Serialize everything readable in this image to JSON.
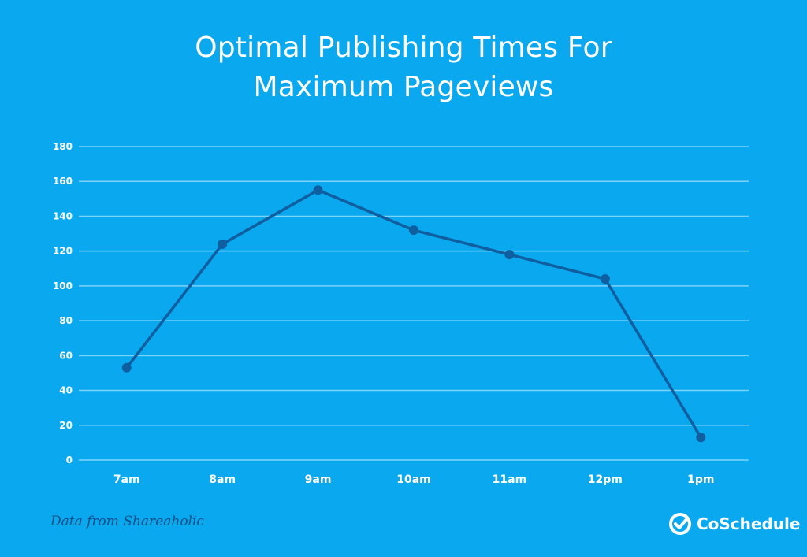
{
  "title_lines": [
    "Optimal Publishing Times For",
    "Maximum Pageviews"
  ],
  "footnote": "Data from Shareaholic",
  "brand": {
    "name": "CoSchedule",
    "icon": "check-circle-icon"
  },
  "colors": {
    "background": "#0aa8ee",
    "line": "#0f5e9f",
    "grid": "#7fd2f8",
    "text": "#ffffff",
    "footnote": "#0c4e86"
  },
  "chart_data": {
    "type": "line",
    "categories": [
      "7am",
      "8am",
      "9am",
      "10am",
      "11am",
      "12pm",
      "1pm"
    ],
    "series": [
      {
        "values": [
          53,
          124,
          155,
          132,
          118,
          104,
          13
        ]
      }
    ],
    "yticks": [
      0,
      20,
      40,
      60,
      80,
      100,
      120,
      140,
      160,
      180
    ],
    "ylim": [
      0,
      180
    ],
    "grid": true,
    "legend": "none"
  }
}
